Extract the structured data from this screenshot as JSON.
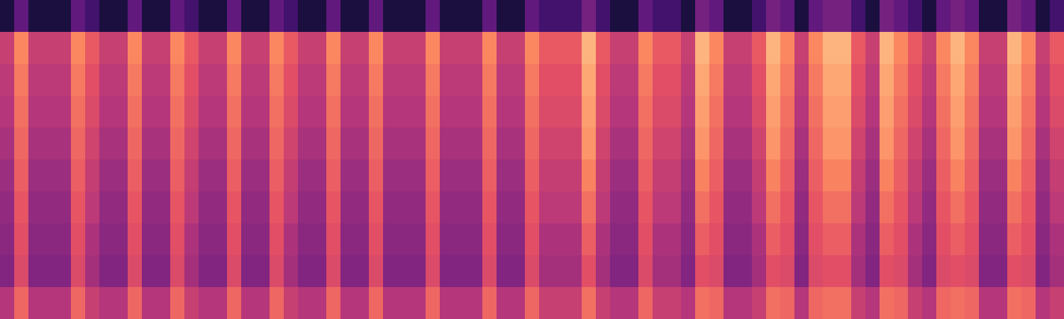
{
  "chart_data": {
    "type": "heatmap",
    "zlim": [
      0,
      100
    ],
    "tick_labels": false,
    "cells": [
      [
        12,
        30,
        12,
        12,
        12,
        30,
        22,
        12,
        12,
        30,
        12,
        12,
        30,
        22,
        12,
        12,
        30,
        12,
        12,
        30,
        22,
        12,
        12,
        30,
        12,
        12,
        30,
        12,
        12,
        12,
        30,
        12,
        12,
        12,
        30,
        12,
        12,
        30,
        22,
        22,
        22,
        35,
        22,
        12,
        12,
        30,
        22,
        22,
        12,
        35,
        30,
        12,
        12,
        22,
        35,
        30,
        12,
        30,
        35,
        35,
        22,
        12,
        35,
        30,
        22,
        12,
        30,
        35,
        30,
        12,
        12,
        35,
        30,
        12,
        22
      ],
      [
        55,
        75,
        55,
        55,
        55,
        75,
        65,
        55,
        55,
        75,
        55,
        55,
        75,
        65,
        55,
        55,
        75,
        55,
        55,
        75,
        65,
        55,
        55,
        75,
        55,
        55,
        75,
        55,
        55,
        55,
        75,
        55,
        55,
        55,
        75,
        55,
        55,
        75,
        65,
        65,
        65,
        85,
        65,
        55,
        55,
        75,
        65,
        65,
        55,
        85,
        75,
        55,
        55,
        65,
        85,
        75,
        55,
        75,
        85,
        85,
        65,
        55,
        85,
        75,
        65,
        55,
        75,
        85,
        75,
        55,
        55,
        85,
        75,
        55,
        65
      ],
      [
        52,
        72,
        52,
        52,
        52,
        72,
        62,
        52,
        52,
        72,
        52,
        52,
        72,
        62,
        52,
        52,
        72,
        52,
        52,
        72,
        62,
        52,
        52,
        72,
        52,
        52,
        72,
        52,
        52,
        52,
        72,
        52,
        52,
        52,
        72,
        52,
        52,
        72,
        62,
        62,
        62,
        82,
        62,
        52,
        52,
        72,
        62,
        62,
        52,
        82,
        72,
        52,
        52,
        62,
        82,
        72,
        52,
        72,
        82,
        82,
        62,
        52,
        82,
        72,
        62,
        52,
        72,
        82,
        72,
        52,
        52,
        82,
        72,
        52,
        62
      ],
      [
        50,
        70,
        50,
        50,
        50,
        70,
        60,
        50,
        50,
        70,
        50,
        50,
        70,
        60,
        50,
        50,
        70,
        50,
        50,
        70,
        60,
        50,
        50,
        70,
        50,
        50,
        70,
        50,
        50,
        50,
        70,
        50,
        50,
        50,
        70,
        50,
        50,
        70,
        60,
        60,
        60,
        80,
        60,
        50,
        50,
        70,
        60,
        60,
        50,
        80,
        70,
        50,
        50,
        60,
        80,
        70,
        50,
        70,
        80,
        80,
        60,
        50,
        80,
        70,
        60,
        50,
        70,
        80,
        70,
        50,
        50,
        80,
        70,
        50,
        60
      ],
      [
        47,
        68,
        47,
        47,
        47,
        68,
        57,
        47,
        47,
        68,
        47,
        47,
        68,
        57,
        47,
        47,
        68,
        47,
        47,
        68,
        57,
        47,
        47,
        68,
        47,
        47,
        68,
        47,
        47,
        47,
        68,
        47,
        47,
        47,
        68,
        47,
        47,
        68,
        57,
        57,
        57,
        78,
        57,
        47,
        47,
        68,
        57,
        57,
        47,
        78,
        68,
        47,
        47,
        57,
        78,
        68,
        47,
        68,
        78,
        78,
        57,
        47,
        78,
        68,
        57,
        47,
        68,
        78,
        68,
        47,
        47,
        78,
        68,
        47,
        57
      ],
      [
        44,
        66,
        44,
        44,
        44,
        66,
        54,
        44,
        44,
        66,
        44,
        44,
        66,
        54,
        44,
        44,
        66,
        44,
        44,
        66,
        54,
        44,
        44,
        66,
        44,
        44,
        66,
        44,
        44,
        44,
        66,
        44,
        44,
        44,
        66,
        44,
        44,
        66,
        54,
        54,
        54,
        74,
        54,
        44,
        44,
        66,
        54,
        54,
        44,
        74,
        66,
        44,
        44,
        54,
        74,
        66,
        44,
        66,
        74,
        74,
        54,
        44,
        74,
        66,
        54,
        44,
        66,
        74,
        66,
        44,
        44,
        74,
        66,
        44,
        54
      ],
      [
        42,
        64,
        42,
        42,
        42,
        64,
        52,
        42,
        42,
        64,
        42,
        42,
        64,
        52,
        42,
        42,
        64,
        42,
        42,
        64,
        52,
        42,
        42,
        64,
        42,
        42,
        64,
        42,
        42,
        42,
        64,
        42,
        42,
        42,
        64,
        42,
        42,
        64,
        52,
        52,
        52,
        70,
        52,
        42,
        42,
        64,
        52,
        52,
        42,
        70,
        64,
        42,
        42,
        52,
        70,
        64,
        42,
        64,
        70,
        70,
        52,
        42,
        70,
        64,
        52,
        42,
        64,
        70,
        64,
        42,
        42,
        70,
        64,
        42,
        52
      ],
      [
        40,
        62,
        40,
        40,
        40,
        62,
        48,
        40,
        40,
        62,
        40,
        40,
        62,
        48,
        40,
        40,
        62,
        40,
        40,
        62,
        48,
        40,
        40,
        62,
        40,
        40,
        62,
        40,
        40,
        40,
        62,
        40,
        40,
        40,
        62,
        40,
        40,
        62,
        48,
        48,
        48,
        66,
        48,
        40,
        40,
        62,
        48,
        48,
        40,
        66,
        62,
        40,
        40,
        48,
        66,
        62,
        40,
        62,
        66,
        66,
        48,
        40,
        66,
        62,
        48,
        40,
        62,
        66,
        62,
        40,
        40,
        66,
        62,
        40,
        48
      ],
      [
        38,
        60,
        38,
        38,
        38,
        60,
        46,
        38,
        38,
        60,
        38,
        38,
        60,
        46,
        38,
        38,
        60,
        38,
        38,
        60,
        46,
        38,
        38,
        60,
        38,
        38,
        60,
        38,
        38,
        38,
        60,
        38,
        38,
        38,
        60,
        38,
        38,
        60,
        46,
        46,
        46,
        62,
        46,
        38,
        38,
        60,
        46,
        46,
        38,
        62,
        60,
        38,
        38,
        46,
        62,
        60,
        38,
        60,
        62,
        62,
        46,
        38,
        62,
        60,
        46,
        38,
        60,
        62,
        60,
        38,
        38,
        62,
        60,
        38,
        46
      ],
      [
        50,
        68,
        50,
        50,
        50,
        68,
        55,
        50,
        50,
        68,
        50,
        50,
        68,
        55,
        50,
        50,
        68,
        50,
        50,
        68,
        55,
        50,
        50,
        68,
        50,
        50,
        68,
        50,
        50,
        50,
        68,
        50,
        50,
        50,
        68,
        50,
        50,
        68,
        55,
        55,
        55,
        70,
        55,
        50,
        50,
        68,
        55,
        55,
        50,
        70,
        68,
        50,
        50,
        55,
        70,
        68,
        50,
        68,
        70,
        70,
        55,
        50,
        70,
        68,
        55,
        50,
        68,
        70,
        68,
        50,
        50,
        70,
        68,
        50,
        55
      ]
    ]
  }
}
